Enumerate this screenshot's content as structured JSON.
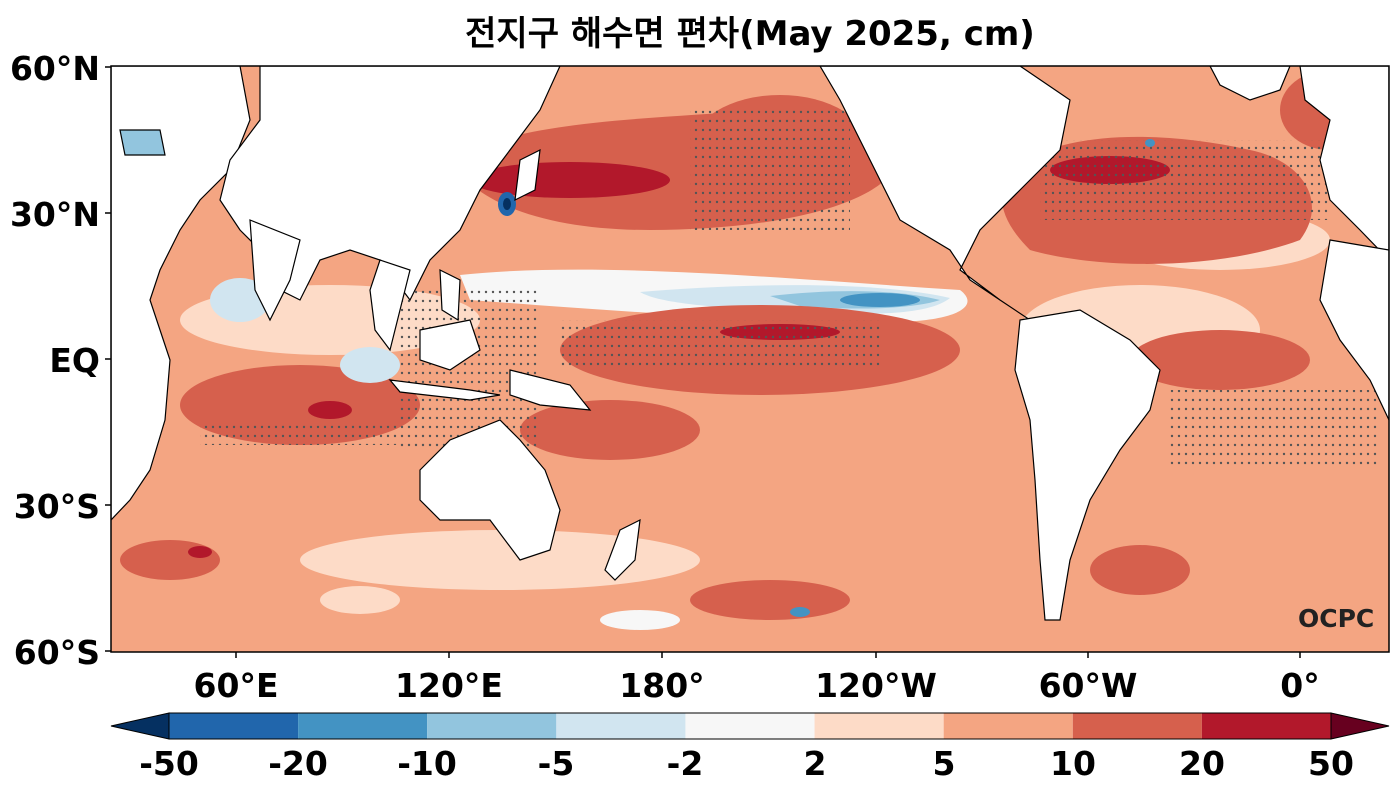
{
  "title": "전지구 해수면 편차(May 2025, cm)",
  "watermark": "OCPC",
  "lat_labels": [
    "60°N",
    "30°N",
    "EQ",
    "30°S",
    "60°S"
  ],
  "lon_labels": [
    "60°E",
    "120°E",
    "180°",
    "120°W",
    "60°W",
    "0°"
  ],
  "colorbar": {
    "ticks": [
      "-50",
      "-20",
      "-10",
      "-5",
      "-2",
      "2",
      "5",
      "10",
      "20",
      "50"
    ],
    "colors": [
      "#2166ac",
      "#4393c3",
      "#92c5de",
      "#d1e5f0",
      "#f7f7f7",
      "#fddbc7",
      "#f4a582",
      "#d6604d",
      "#b2182b"
    ],
    "under_color": "#053061",
    "over_color": "#67001f"
  }
}
